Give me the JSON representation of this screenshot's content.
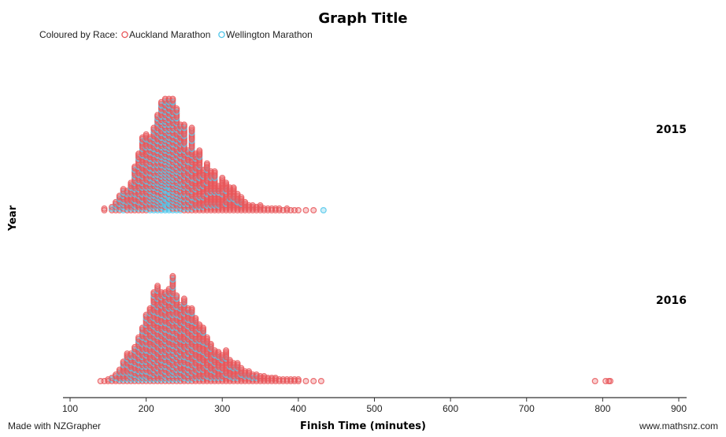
{
  "chart_data": {
    "type": "scatter",
    "subtype": "stacked dot plot",
    "title": "Graph Title",
    "xlabel": "Finish Time (minutes)",
    "ylabel": "Year",
    "xlim": [
      100,
      900
    ],
    "x_ticks": [
      100,
      200,
      300,
      400,
      500,
      600,
      700,
      800,
      900
    ],
    "legend": {
      "title": "Coloured by Race:",
      "placement": "top-left",
      "entries": [
        {
          "name": "Auckland Marathon",
          "color": "#e8575a"
        },
        {
          "name": "Wellington Marathon",
          "color": "#4fc6ea"
        }
      ]
    },
    "panels": [
      "2015",
      "2016"
    ],
    "bins": {
      "2015": {
        "x": [
          145,
          155,
          160,
          165,
          170,
          175,
          180,
          185,
          190,
          195,
          200,
          205,
          210,
          215,
          220,
          225,
          230,
          235,
          240,
          245,
          250,
          255,
          260,
          265,
          270,
          275,
          280,
          285,
          290,
          295,
          300,
          305,
          310,
          315,
          320,
          325,
          330,
          335,
          340,
          345,
          350,
          355,
          360,
          365,
          370,
          375,
          380,
          385,
          390,
          395,
          400,
          410,
          420
        ],
        "auckland": [
          2,
          2,
          4,
          7,
          8,
          10,
          14,
          20,
          28,
          34,
          38,
          30,
          34,
          38,
          42,
          38,
          36,
          44,
          42,
          34,
          40,
          28,
          40,
          30,
          32,
          22,
          26,
          22,
          22,
          14,
          20,
          16,
          14,
          14,
          10,
          8,
          6,
          4,
          4,
          3,
          4,
          2,
          2,
          2,
          2,
          2,
          1,
          2,
          1,
          1,
          1,
          1,
          1
        ],
        "wellington": [
          0,
          1,
          2,
          3,
          6,
          3,
          4,
          8,
          8,
          12,
          10,
          16,
          18,
          22,
          26,
          32,
          34,
          26,
          22,
          20,
          14,
          10,
          12,
          6,
          6,
          4,
          4,
          3,
          3,
          2,
          1,
          2,
          1,
          1,
          1,
          1,
          0,
          0,
          0,
          0,
          0,
          0,
          0,
          0,
          0,
          0,
          0,
          0,
          0,
          0,
          0,
          0,
          0
        ],
        "outliers": [
          {
            "x": 433,
            "race": "Wellington Marathon"
          }
        ]
      },
      "2016": {
        "x": [
          140,
          145,
          150,
          155,
          160,
          165,
          170,
          175,
          180,
          185,
          190,
          195,
          200,
          205,
          210,
          215,
          220,
          225,
          230,
          235,
          240,
          245,
          250,
          255,
          260,
          265,
          270,
          275,
          280,
          285,
          290,
          295,
          300,
          305,
          310,
          315,
          320,
          325,
          330,
          335,
          340,
          345,
          350,
          355,
          360,
          365,
          370,
          375,
          380,
          385,
          390,
          395,
          400,
          410,
          420,
          430
        ],
        "auckland": [
          1,
          1,
          2,
          2,
          4,
          6,
          10,
          14,
          12,
          16,
          20,
          24,
          30,
          36,
          42,
          46,
          44,
          40,
          44,
          48,
          40,
          36,
          42,
          34,
          36,
          32,
          30,
          28,
          24,
          20,
          16,
          16,
          14,
          18,
          12,
          10,
          10,
          8,
          6,
          6,
          4,
          4,
          4,
          4,
          3,
          3,
          3,
          2,
          2,
          2,
          2,
          2,
          2,
          1,
          1,
          1
        ],
        "wellington": [
          0,
          0,
          0,
          1,
          1,
          2,
          3,
          4,
          6,
          6,
          8,
          10,
          12,
          10,
          14,
          14,
          12,
          16,
          14,
          18,
          14,
          12,
          10,
          12,
          10,
          8,
          6,
          6,
          4,
          4,
          4,
          3,
          3,
          2,
          2,
          2,
          2,
          1,
          1,
          1,
          1,
          1,
          0,
          0,
          0,
          0,
          0,
          0,
          0,
          0,
          0,
          0,
          0,
          0,
          0,
          0
        ],
        "outliers": [
          {
            "x": 790,
            "race": "Auckland Marathon"
          },
          {
            "x": 804,
            "race": "Auckland Marathon"
          },
          {
            "x": 808,
            "race": "Auckland Marathon"
          },
          {
            "x": 810,
            "race": "Auckland Marathon"
          }
        ]
      }
    }
  },
  "footer": {
    "left": "Made with NZGrapher",
    "right": "www.mathsnz.com"
  }
}
